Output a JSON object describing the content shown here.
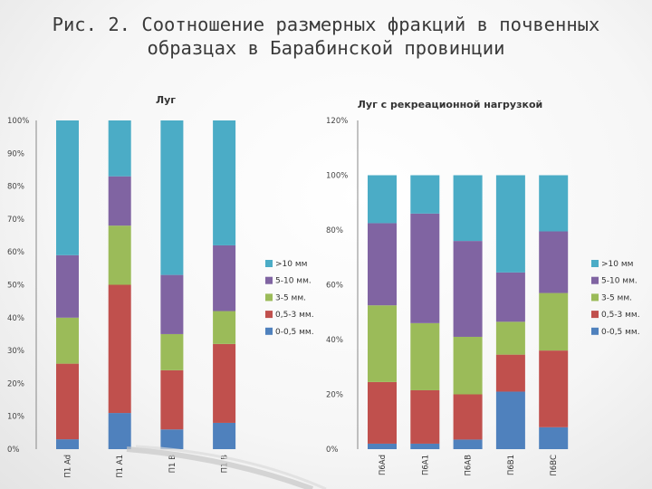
{
  "slide": {
    "title_line1": "Рис. 2. Соотношение размерных фракций в почвенных",
    "title_line2": "образцах в Барабинской провинции"
  },
  "chart_data": [
    {
      "type": "bar",
      "stacked": true,
      "title": "Луг",
      "categories": [
        "П1 Ad",
        "П1 А1",
        "П1 В",
        "П1 В"
      ],
      "ylim": [
        0,
        100
      ],
      "yticks": [
        "0%",
        "10%",
        "20%",
        "30%",
        "40%",
        "50%",
        "60%",
        "70%",
        "80%",
        "90%",
        "100%"
      ],
      "series": [
        {
          "name": "0-0,5 мм.",
          "color": "#4f81bd",
          "values": [
            3,
            11,
            6,
            8
          ]
        },
        {
          "name": "0,5-3 мм.",
          "color": "#c0504d",
          "values": [
            23,
            39,
            18,
            24
          ]
        },
        {
          "name": "3-5 мм.",
          "color": "#9bbb59",
          "values": [
            14,
            18,
            11,
            10
          ]
        },
        {
          "name": "5-10 мм.",
          "color": "#8064a2",
          "values": [
            19,
            15,
            18,
            20
          ]
        },
        {
          "name": ">10 мм",
          "color": "#4bacc6",
          "values": [
            41,
            17,
            47,
            38
          ]
        }
      ],
      "legend": ">10 мм|5-10 мм.|3-5 мм.|0,5-3 мм.|0-0,5 мм.",
      "legend_position": "right",
      "grid": false
    },
    {
      "type": "bar",
      "stacked": true,
      "title": "Луг с рекреационной нагрузкой",
      "categories": [
        "П6Аd",
        "П6А1",
        "П6АВ",
        "П6В1",
        "П6ВС"
      ],
      "ylim": [
        0,
        120
      ],
      "yticks": [
        "0%",
        "20%",
        "40%",
        "60%",
        "80%",
        "100%",
        "120%"
      ],
      "series": [
        {
          "name": "0-0,5 мм.",
          "color": "#4f81bd",
          "values": [
            2,
            2,
            3.5,
            21,
            8
          ]
        },
        {
          "name": "0,5-3 мм.",
          "color": "#c0504d",
          "values": [
            22.5,
            19.5,
            16.5,
            13.5,
            28
          ]
        },
        {
          "name": "3-5 мм.",
          "color": "#9bbb59",
          "values": [
            28,
            24.5,
            21,
            12,
            21
          ]
        },
        {
          "name": "5-10 мм.",
          "color": "#8064a2",
          "values": [
            30,
            40,
            35,
            18,
            22.5
          ]
        },
        {
          "name": ">10 мм",
          "color": "#4bacc6",
          "values": [
            17.5,
            14,
            24,
            35.5,
            20.5
          ]
        }
      ],
      "legend": ">10 мм|5-10 мм.|3-5 мм.|0,5-3 мм.|0-0,5 мм.",
      "legend_position": "right",
      "grid": false
    }
  ]
}
